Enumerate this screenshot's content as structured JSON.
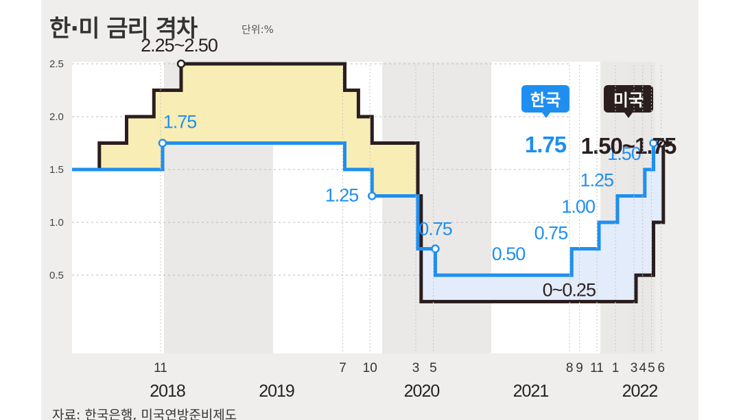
{
  "header": {
    "title": "한·미 금리 격차",
    "unit": "단위:%"
  },
  "footer": {
    "source": "자료: 한국은행, 미국연방준비제도"
  },
  "colors": {
    "korea": "#1e8ff0",
    "us": "#2a1e1e",
    "gap_yellow": "#f8edb4",
    "gap_blue": "#e2ecfa",
    "background": "#efeeec",
    "plot": "#ffffff",
    "shade": "#e8e7e5"
  },
  "chart_data": {
    "type": "line",
    "step": true,
    "title": "한·미 금리 격차",
    "unit": "단위:%",
    "ylim": [
      0,
      2.6
    ],
    "y_ticks": [
      "2.5",
      "2.0",
      "1.5",
      "1.0",
      "0.5"
    ],
    "grid": true,
    "x_ticks": [
      {
        "label": "11",
        "t": 2017.83
      },
      {
        "label": "7",
        "t": 2019.5
      },
      {
        "label": "10",
        "t": 2019.75
      },
      {
        "label": "3",
        "t": 2020.17
      },
      {
        "label": "5",
        "t": 2020.33
      },
      {
        "label": "8",
        "t": 2021.58
      },
      {
        "label": "9",
        "t": 2021.67
      },
      {
        "label": "11",
        "t": 2021.83
      },
      {
        "label": "1",
        "t": 2022.0
      },
      {
        "label": "3",
        "t": 2022.17
      },
      {
        "label": "4",
        "t": 2022.25
      },
      {
        "label": "5",
        "t": 2022.33
      },
      {
        "label": "6",
        "t": 2022.42
      }
    ],
    "year_labels": [
      {
        "label": "2018",
        "t": 2018.0
      },
      {
        "label": "2019",
        "t": 2019.0
      },
      {
        "label": "2020",
        "t": 2020.33
      },
      {
        "label": "2021",
        "t": 2021.33
      },
      {
        "label": "2022",
        "t": 2022.33
      }
    ],
    "series": [
      {
        "name": "한국",
        "legend_value": "1.75",
        "steps": [
          {
            "t": 2017.0,
            "v": 1.5
          },
          {
            "t": 2017.83,
            "v": 1.75
          },
          {
            "t": 2019.5,
            "v": 1.5
          },
          {
            "t": 2019.75,
            "v": 1.25
          },
          {
            "t": 2020.17,
            "v": 0.75
          },
          {
            "t": 2020.33,
            "v": 0.5
          },
          {
            "t": 2021.58,
            "v": 0.75
          },
          {
            "t": 2021.83,
            "v": 1.0
          },
          {
            "t": 2022.0,
            "v": 1.25
          },
          {
            "t": 2022.25,
            "v": 1.5
          },
          {
            "t": 2022.33,
            "v": 1.75
          }
        ],
        "end_t": 2022.33
      },
      {
        "name": "미국",
        "legend_value": "1.50~1.75",
        "steps": [
          {
            "t": 2017.0,
            "v": 1.5
          },
          {
            "t": 2017.25,
            "v": 1.75
          },
          {
            "t": 2017.5,
            "v": 2.0
          },
          {
            "t": 2017.75,
            "v": 2.25
          },
          {
            "t": 2018.0,
            "v": 2.5
          },
          {
            "t": 2019.5,
            "v": 2.25
          },
          {
            "t": 2019.625,
            "v": 2.0
          },
          {
            "t": 2019.75,
            "v": 1.75
          },
          {
            "t": 2020.17,
            "v": 1.25
          },
          {
            "t": 2020.2,
            "v": 0.25
          },
          {
            "t": 2022.17,
            "v": 0.5
          },
          {
            "t": 2022.33,
            "v": 1.0
          },
          {
            "t": 2022.42,
            "v": 1.75
          }
        ],
        "end_t": 2022.5
      }
    ],
    "annotations": [
      {
        "series": "미국",
        "text": "2.25~2.50",
        "t": 2018.0,
        "v": 2.5,
        "marker": true
      },
      {
        "series": "한국",
        "text": "1.75",
        "t": 2017.83,
        "v": 1.75,
        "marker": true
      },
      {
        "series": "한국",
        "text": "1.25",
        "t": 2019.75,
        "v": 1.25,
        "marker": true
      },
      {
        "series": "한국",
        "text": "0.75",
        "t": 2020.33,
        "v": 0.75,
        "marker": true
      },
      {
        "series": "한국",
        "text": "0.50",
        "t": 2021.0,
        "v": 0.5,
        "marker": false
      },
      {
        "series": "한국",
        "text": "0.75",
        "t": 2021.58,
        "v": 0.75,
        "marker": false
      },
      {
        "series": "한국",
        "text": "1.00",
        "t": 2021.83,
        "v": 1.0,
        "marker": false
      },
      {
        "series": "한국",
        "text": "1.25",
        "t": 2022.0,
        "v": 1.25,
        "marker": false
      },
      {
        "series": "한국",
        "text": "1.50",
        "t": 2022.25,
        "v": 1.5,
        "marker": false
      },
      {
        "series": "미국",
        "text": "0~0.25",
        "t": 2021.83,
        "v": 0.25,
        "marker": false
      }
    ]
  }
}
